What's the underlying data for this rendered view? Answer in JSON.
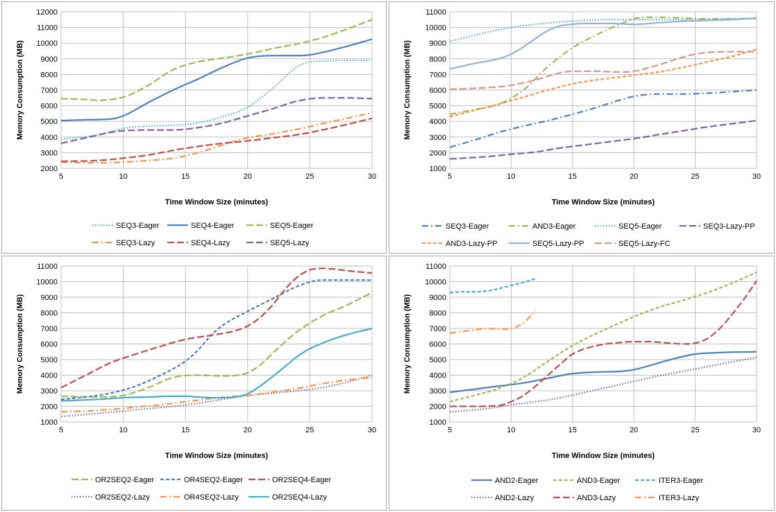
{
  "chart_data": [
    {
      "type": "line",
      "xlabel": "Time Window Size (minutes)",
      "ylabel": "Memory Consumption (MB)",
      "xlim": [
        5,
        30
      ],
      "ylim": [
        2000,
        12000
      ],
      "xticks": [
        5,
        10,
        15,
        20,
        25,
        30
      ],
      "yticks": [
        2000,
        3000,
        4000,
        5000,
        6000,
        7000,
        8000,
        9000,
        10000,
        11000,
        12000
      ],
      "legend_position": "bottom",
      "series": [
        {
          "name": "SEQ3-Eager",
          "color": "#4bacc6",
          "dash": "dot",
          "x": [
            5,
            8,
            10,
            12,
            14,
            16,
            18,
            20,
            22,
            24,
            25,
            26,
            28,
            30
          ],
          "y": [
            3850,
            4150,
            4550,
            4700,
            4750,
            4900,
            5300,
            5900,
            7100,
            8500,
            8800,
            8850,
            8900,
            8900
          ]
        },
        {
          "name": "SEQ4-Eager",
          "color": "#4f81bd",
          "dash": "solid",
          "x": [
            5,
            7,
            9,
            10,
            12,
            14,
            16,
            18,
            20,
            22,
            24,
            25,
            26,
            28,
            30
          ],
          "y": [
            5050,
            5100,
            5150,
            5350,
            6200,
            7000,
            7700,
            8450,
            9050,
            9200,
            9200,
            9250,
            9400,
            9800,
            10250
          ]
        },
        {
          "name": "SEQ5-Eager",
          "color": "#9bbb59",
          "dash": "longdash",
          "x": [
            5,
            7,
            8,
            10,
            12,
            14,
            15,
            16,
            18,
            20,
            22,
            24,
            26,
            28,
            30
          ],
          "y": [
            6450,
            6400,
            6350,
            6550,
            7300,
            8300,
            8600,
            8800,
            9050,
            9300,
            9650,
            9950,
            10350,
            10900,
            11500
          ]
        },
        {
          "name": "SEQ3-Lazy",
          "color": "#f79646",
          "dash": "dashdot",
          "x": [
            5,
            8,
            10,
            12,
            14,
            16,
            18,
            20,
            22,
            24,
            26,
            28,
            30
          ],
          "y": [
            2400,
            2350,
            2400,
            2500,
            2650,
            3000,
            3500,
            3950,
            4200,
            4500,
            4850,
            5200,
            5550
          ]
        },
        {
          "name": "SEQ4-Lazy",
          "color": "#c0504d",
          "dash": "longdash",
          "x": [
            5,
            8,
            10,
            12,
            14,
            16,
            18,
            20,
            22,
            24,
            26,
            28,
            30
          ],
          "y": [
            2450,
            2500,
            2650,
            2850,
            3150,
            3400,
            3600,
            3750,
            3950,
            4150,
            4450,
            4800,
            5200
          ]
        },
        {
          "name": "SEQ5-Lazy",
          "color": "#8064a2",
          "dash": "longdash",
          "x": [
            5,
            7,
            9,
            10,
            12,
            14,
            16,
            18,
            20,
            22,
            24,
            26,
            28,
            30
          ],
          "y": [
            3600,
            3950,
            4300,
            4400,
            4450,
            4450,
            4600,
            4900,
            5350,
            5800,
            6300,
            6500,
            6500,
            6450
          ]
        }
      ]
    },
    {
      "type": "line",
      "xlabel": "Time Window Size (minutes)",
      "ylabel": "Memory Consumption (MB)",
      "xlim": [
        5,
        30
      ],
      "ylim": [
        1000,
        11000
      ],
      "xticks": [
        5,
        10,
        15,
        20,
        25,
        30
      ],
      "yticks": [
        1000,
        2000,
        3000,
        4000,
        5000,
        6000,
        7000,
        8000,
        9000,
        10000,
        11000
      ],
      "legend_position": "bottom",
      "series": [
        {
          "name": "SEQ3-Eager",
          "color": "#4f81bd",
          "dash": "dashdot",
          "x": [
            5,
            7,
            9,
            11,
            13,
            15,
            17,
            19,
            20,
            22,
            24,
            26,
            28,
            30
          ],
          "y": [
            2350,
            2800,
            3300,
            3700,
            4050,
            4450,
            4900,
            5400,
            5600,
            5750,
            5750,
            5800,
            5900,
            6000
          ]
        },
        {
          "name": "AND3-Eager",
          "color": "#9bbb59",
          "dash": "dashdot",
          "x": [
            5,
            7,
            9,
            11,
            13,
            15,
            17,
            19,
            20,
            21,
            22,
            24,
            26,
            28,
            30
          ],
          "y": [
            4450,
            4750,
            5100,
            6000,
            7500,
            8700,
            9550,
            10250,
            10550,
            10650,
            10650,
            10600,
            10550,
            10550,
            10600
          ]
        },
        {
          "name": "SEQ5-Eager",
          "color": "#4bacc6",
          "dash": "dot",
          "x": [
            5,
            7,
            9,
            10,
            12,
            14,
            16,
            18,
            20,
            22,
            24,
            26,
            28,
            30
          ],
          "y": [
            9100,
            9500,
            9850,
            10000,
            10200,
            10350,
            10450,
            10500,
            10500,
            10500,
            10500,
            10500,
            10550,
            10550
          ]
        },
        {
          "name": "SEQ3-Lazy-PP",
          "color": "#8064a2",
          "dash": "longdash",
          "x": [
            5,
            8,
            10,
            12,
            14,
            16,
            18,
            20,
            22,
            24,
            26,
            28,
            30
          ],
          "y": [
            1600,
            1750,
            1900,
            2050,
            2300,
            2500,
            2700,
            2900,
            3150,
            3400,
            3650,
            3850,
            4050
          ]
        },
        {
          "name": "AND3-Lazy-PP",
          "color": "#f79646",
          "dash": "dash",
          "x": [
            5,
            7,
            9,
            11,
            13,
            15,
            17,
            19,
            20,
            22,
            24,
            26,
            28,
            30
          ],
          "y": [
            4300,
            4700,
            5100,
            5550,
            6000,
            6400,
            6650,
            6850,
            6950,
            7150,
            7450,
            7800,
            8150,
            8600
          ]
        },
        {
          "name": "SEQ5-Lazy-PP",
          "color": "#95b3d7",
          "dash": "solid",
          "x": [
            5,
            7,
            9,
            10,
            11,
            12,
            13,
            14,
            15,
            16,
            18,
            20,
            22,
            24,
            26,
            28,
            30
          ],
          "y": [
            7350,
            7700,
            8000,
            8300,
            8750,
            9300,
            9800,
            10100,
            10200,
            10250,
            10250,
            10200,
            10300,
            10400,
            10450,
            10500,
            10600
          ]
        },
        {
          "name": "SEQ5-Lazy-FC",
          "color": "#d99694",
          "dash": "longdash",
          "x": [
            5,
            8,
            10,
            12,
            14,
            15,
            17,
            19,
            20,
            22,
            24,
            25,
            26,
            28,
            30
          ],
          "y": [
            6050,
            6150,
            6300,
            6650,
            7100,
            7200,
            7200,
            7150,
            7200,
            7600,
            8100,
            8300,
            8400,
            8450,
            8450
          ]
        }
      ]
    },
    {
      "type": "line",
      "xlabel": "Time Window Size (minutes)",
      "ylabel": "Memory Consumption (MB)",
      "xlim": [
        5,
        30
      ],
      "ylim": [
        1000,
        11000
      ],
      "xticks": [
        5,
        10,
        15,
        20,
        25,
        30
      ],
      "yticks": [
        1000,
        2000,
        3000,
        4000,
        5000,
        6000,
        7000,
        8000,
        9000,
        10000,
        11000
      ],
      "legend_position": "bottom",
      "series": [
        {
          "name": "OR2SEQ2-Eager",
          "color": "#9bbb59",
          "dash": "longdash",
          "x": [
            5,
            8,
            10,
            12,
            14,
            16,
            18,
            20,
            21,
            22,
            24,
            26,
            28,
            30
          ],
          "y": [
            2650,
            2600,
            2700,
            3200,
            3850,
            4000,
            3950,
            4150,
            4650,
            5400,
            6800,
            7800,
            8500,
            9300
          ]
        },
        {
          "name": "OR4SEQ2-Eager",
          "color": "#4f81bd",
          "dash": "dash",
          "x": [
            5,
            7,
            9,
            11,
            13,
            15,
            16,
            17,
            18,
            20,
            22,
            24,
            26,
            28,
            30
          ],
          "y": [
            2450,
            2600,
            2850,
            3300,
            4000,
            4900,
            5600,
            6500,
            7200,
            8100,
            8900,
            9700,
            10100,
            10100,
            10100
          ]
        },
        {
          "name": "OR2SEQ4-Eager",
          "color": "#c0504d",
          "dash": "longdash",
          "x": [
            5,
            7,
            9,
            11,
            13,
            15,
            17,
            19,
            20,
            21,
            22,
            23,
            24,
            25,
            26,
            27,
            28,
            30
          ],
          "y": [
            3200,
            4000,
            4800,
            5350,
            5850,
            6300,
            6550,
            6850,
            7150,
            7700,
            8500,
            9500,
            10300,
            10750,
            10850,
            10800,
            10700,
            10550
          ]
        },
        {
          "name": "OR2SEQ2-Lazy",
          "color": "#8064a2",
          "dash": "dot",
          "x": [
            5,
            8,
            10,
            12,
            14,
            16,
            18,
            20,
            22,
            24,
            26,
            28,
            30
          ],
          "y": [
            1350,
            1550,
            1700,
            1850,
            2000,
            2200,
            2450,
            2700,
            2850,
            3000,
            3200,
            3550,
            4000
          ]
        },
        {
          "name": "OR4SEQ2-Lazy",
          "color": "#f79646",
          "dash": "dashdot",
          "x": [
            5,
            7,
            9,
            11,
            13,
            15,
            17,
            19,
            20,
            22,
            24,
            26,
            28,
            30
          ],
          "y": [
            1650,
            1700,
            1800,
            1950,
            2100,
            2300,
            2500,
            2650,
            2700,
            2900,
            3150,
            3450,
            3700,
            3850
          ]
        },
        {
          "name": "OR2SEQ4-Lazy",
          "color": "#4bacc6",
          "dash": "solid",
          "x": [
            5,
            8,
            10,
            12,
            14,
            15,
            16,
            17,
            18,
            19,
            20,
            21,
            22,
            23,
            24,
            25,
            26,
            27,
            28,
            30
          ],
          "y": [
            2350,
            2450,
            2550,
            2600,
            2650,
            2650,
            2600,
            2550,
            2550,
            2600,
            2800,
            3300,
            3900,
            4550,
            5200,
            5700,
            6050,
            6350,
            6600,
            7000
          ]
        }
      ]
    },
    {
      "type": "line",
      "xlabel": "Time Window Size (minutes)",
      "ylabel": "Memory Consumption (MB)",
      "xlim": [
        5,
        30
      ],
      "ylim": [
        1000,
        11000
      ],
      "xticks": [
        5,
        10,
        15,
        20,
        25,
        30
      ],
      "yticks": [
        1000,
        2000,
        3000,
        4000,
        5000,
        6000,
        7000,
        8000,
        9000,
        10000,
        11000
      ],
      "legend_position": "bottom",
      "series": [
        {
          "name": "AND2-Eager",
          "color": "#4f81bd",
          "dash": "solid",
          "x": [
            5,
            7,
            9,
            11,
            13,
            15,
            17,
            19,
            20,
            21,
            23,
            25,
            27,
            30
          ],
          "y": [
            2900,
            3100,
            3300,
            3500,
            3800,
            4100,
            4200,
            4250,
            4350,
            4550,
            5000,
            5350,
            5450,
            5500
          ]
        },
        {
          "name": "AND3-Eager",
          "color": "#9bbb59",
          "dash": "dash",
          "x": [
            5,
            7,
            9,
            11,
            13,
            15,
            17,
            19,
            20,
            22,
            24,
            26,
            28,
            30
          ],
          "y": [
            2300,
            2700,
            3150,
            3850,
            4900,
            5900,
            6700,
            7400,
            7750,
            8350,
            8800,
            9300,
            9900,
            10600
          ]
        },
        {
          "name": "ITER3-Eager",
          "color": "#4bacc6",
          "dash": "dash",
          "x": [
            5,
            6,
            7,
            8,
            9,
            10,
            11,
            12
          ],
          "y": [
            9300,
            9350,
            9350,
            9400,
            9550,
            9750,
            9950,
            10200
          ]
        },
        {
          "name": "AND2-Lazy",
          "color": "#8064a2",
          "dash": "dot",
          "x": [
            5,
            8,
            10,
            12,
            14,
            16,
            18,
            20,
            22,
            24,
            26,
            28,
            30
          ],
          "y": [
            1650,
            1850,
            2100,
            2300,
            2550,
            2900,
            3250,
            3600,
            3950,
            4250,
            4550,
            4850,
            5150
          ]
        },
        {
          "name": "AND3-Lazy",
          "color": "#c0504d",
          "dash": "longdash",
          "x": [
            5,
            7,
            9,
            10,
            11,
            12,
            13,
            14,
            15,
            17,
            19,
            20,
            21,
            23,
            24,
            25,
            26,
            27,
            28,
            29,
            30
          ],
          "y": [
            2000,
            2000,
            2050,
            2300,
            2700,
            3300,
            4000,
            4700,
            5350,
            5900,
            6100,
            6150,
            6150,
            6050,
            6000,
            6050,
            6350,
            7000,
            7900,
            8900,
            10050
          ]
        },
        {
          "name": "ITER3-Lazy",
          "color": "#f79646",
          "dash": "dashdot",
          "x": [
            5,
            6,
            7,
            8,
            9,
            10,
            11,
            12
          ],
          "y": [
            6700,
            6800,
            6900,
            7000,
            6950,
            7000,
            7350,
            8150
          ]
        }
      ]
    }
  ]
}
